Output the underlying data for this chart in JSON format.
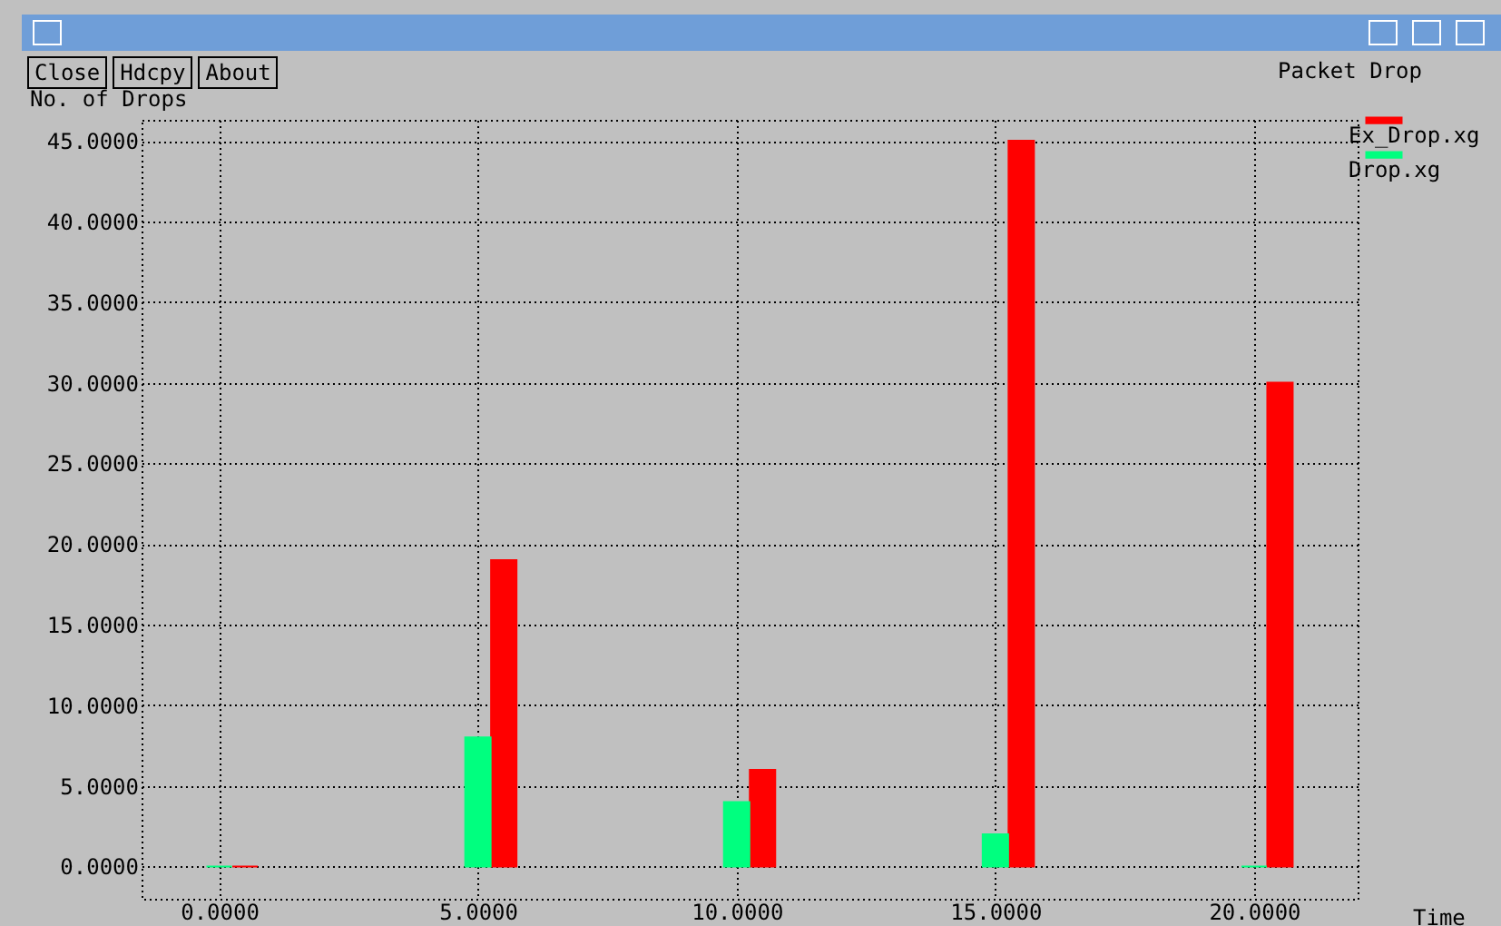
{
  "chart_data": {
    "type": "bar",
    "title": "Packet Drop",
    "xlabel": "Time",
    "ylabel": "No. of Drops",
    "annotations": [
      "Close",
      "Hdcpy",
      "About"
    ],
    "series": [
      {
        "name": "Ex_Drop.xg",
        "color": "#ff0000",
        "x": [
          0.5,
          5.5,
          10.5,
          15.5,
          20.5
        ],
        "values": [
          0,
          19,
          6,
          45,
          30
        ]
      },
      {
        "name": "Drop.xg",
        "color": "#00ff7f",
        "x": [
          0,
          5,
          10,
          15,
          20
        ],
        "values": [
          0,
          8,
          4,
          2,
          0
        ]
      }
    ],
    "xlim": [
      -1.5,
      22
    ],
    "ylim": [
      -2,
      46.3
    ],
    "xticks": [
      {
        "value": 0,
        "label": "0.0000"
      },
      {
        "value": 5,
        "label": "5.0000"
      },
      {
        "value": 10,
        "label": "10.0000"
      },
      {
        "value": 15,
        "label": "15.0000"
      },
      {
        "value": 20,
        "label": "20.0000"
      }
    ],
    "yticks": [
      {
        "value": 0,
        "label": "0.0000"
      },
      {
        "value": 5,
        "label": "5.0000"
      },
      {
        "value": 10,
        "label": "10.0000"
      },
      {
        "value": 15,
        "label": "15.0000"
      },
      {
        "value": 20,
        "label": "20.0000"
      },
      {
        "value": 25,
        "label": "25.0000"
      },
      {
        "value": 30,
        "label": "30.0000"
      },
      {
        "value": 35,
        "label": "35.0000"
      },
      {
        "value": 40,
        "label": "40.0000"
      },
      {
        "value": 45,
        "label": "45.0000"
      }
    ],
    "grid": true,
    "legend": "top right"
  }
}
